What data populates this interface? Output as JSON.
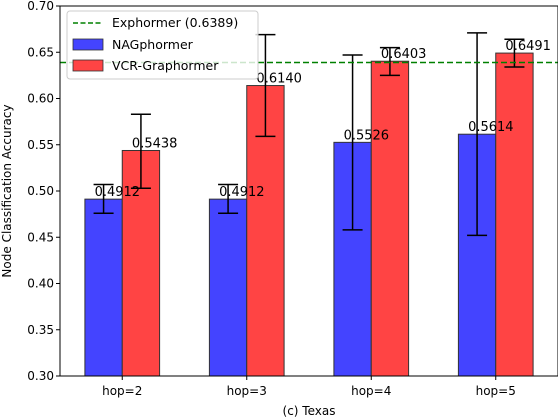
{
  "chart_data": {
    "type": "bar",
    "title": "",
    "xlabel": "(c) Texas",
    "ylabel": "Node Classification Accuracy",
    "ylim": [
      0.3,
      0.7
    ],
    "yticks": [
      "0.30",
      "0.35",
      "0.40",
      "0.45",
      "0.50",
      "0.55",
      "0.60",
      "0.65",
      "0.70"
    ],
    "categories": [
      "hop=2",
      "hop=3",
      "hop=4",
      "hop=5"
    ],
    "series": [
      {
        "name": "NAGphormer",
        "color": "#4444ff",
        "values": [
          0.4912,
          0.4912,
          0.5526,
          0.5614
        ],
        "labels": [
          "0.4912",
          "0.4912",
          "0.5526",
          "0.5614"
        ],
        "err_low": [
          0.476,
          0.476,
          0.458,
          0.452
        ],
        "err_high": [
          0.507,
          0.507,
          0.647,
          0.671
        ]
      },
      {
        "name": "VCR-Graphormer",
        "color": "#ff4444",
        "values": [
          0.5438,
          0.614,
          0.6403,
          0.6491
        ],
        "labels": [
          "0.5438",
          "0.6140",
          "0.6403",
          "0.6491"
        ],
        "err_low": [
          0.503,
          0.559,
          0.625,
          0.634
        ],
        "err_high": [
          0.583,
          0.669,
          0.655,
          0.664
        ]
      }
    ],
    "reference_line": {
      "name": "Exphormer (0.6389)",
      "value": 0.6389,
      "color": "#008000",
      "style": "dashed"
    },
    "legend_position": "top-left",
    "grid": false
  }
}
